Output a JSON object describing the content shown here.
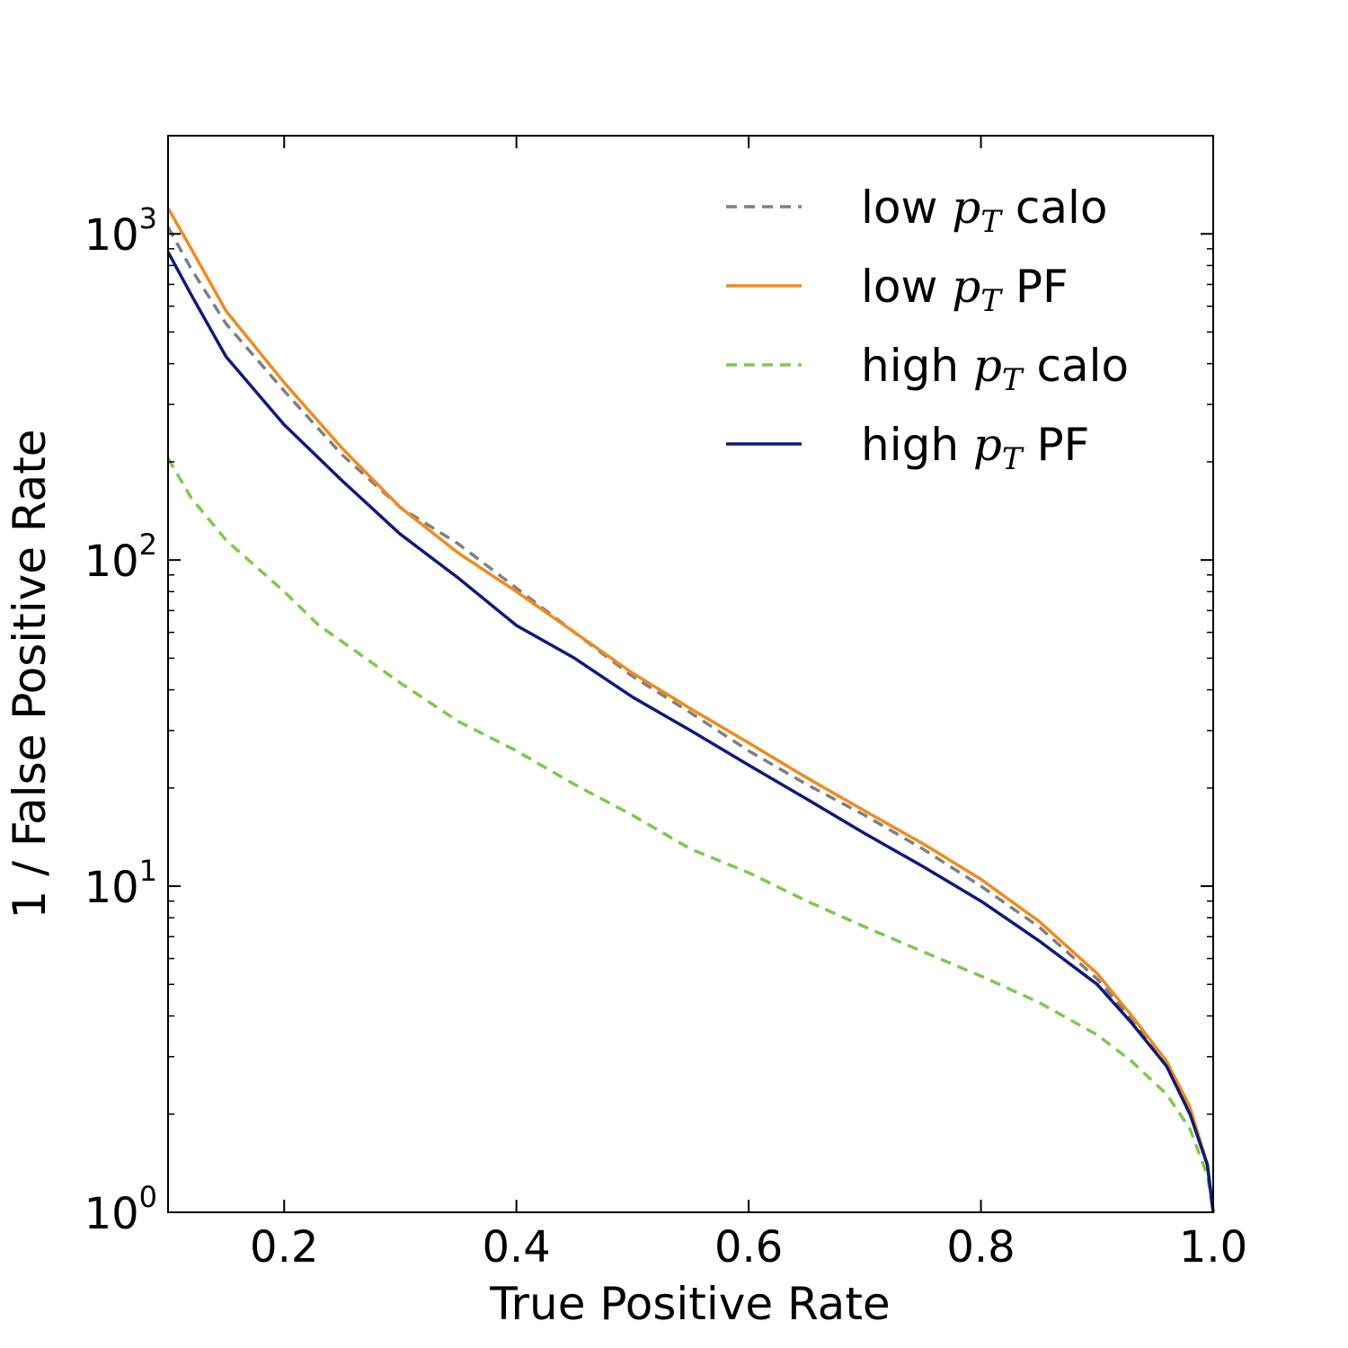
{
  "chart_data": {
    "type": "line",
    "title": "",
    "xlabel": "True Positive Rate",
    "ylabel": "1 / False Positive Rate",
    "xlim": [
      0.1,
      1.0
    ],
    "ylim": [
      1,
      2000
    ],
    "yscale": "log",
    "grid": false,
    "legend_position": "top-right",
    "x_ticks": [
      {
        "value": 0.2,
        "label": "0.2"
      },
      {
        "value": 0.4,
        "label": "0.4"
      },
      {
        "value": 0.6,
        "label": "0.6"
      },
      {
        "value": 0.8,
        "label": "0.8"
      },
      {
        "value": 1.0,
        "label": "1.0"
      }
    ],
    "y_ticks": [
      {
        "value": 1,
        "base": "10",
        "exp": "0"
      },
      {
        "value": 10,
        "base": "10",
        "exp": "1"
      },
      {
        "value": 100,
        "base": "10",
        "exp": "2"
      },
      {
        "value": 1000,
        "base": "10",
        "exp": "3"
      }
    ],
    "series": [
      {
        "label_prefix": "low",
        "label_math": "p",
        "label_sub": "T",
        "label_suffix": "calo",
        "color": "#808080",
        "dash": true,
        "points": [
          [
            0.1,
            1050
          ],
          [
            0.12,
            780
          ],
          [
            0.15,
            530
          ],
          [
            0.2,
            330
          ],
          [
            0.25,
            210
          ],
          [
            0.3,
            145
          ],
          [
            0.35,
            112
          ],
          [
            0.4,
            82
          ],
          [
            0.45,
            60
          ],
          [
            0.5,
            44
          ],
          [
            0.55,
            34
          ],
          [
            0.6,
            26
          ],
          [
            0.65,
            20.5
          ],
          [
            0.7,
            16.5
          ],
          [
            0.75,
            13
          ],
          [
            0.8,
            10
          ],
          [
            0.85,
            7.5
          ],
          [
            0.9,
            5.2
          ],
          [
            0.93,
            3.9
          ],
          [
            0.96,
            2.8
          ],
          [
            0.98,
            2.0
          ],
          [
            0.995,
            1.4
          ],
          [
            1.0,
            1.0
          ]
        ]
      },
      {
        "label_prefix": "low",
        "label_math": "p",
        "label_sub": "T",
        "label_suffix": "PF",
        "color": "#ee8c1e",
        "dash": false,
        "points": [
          [
            0.1,
            1200
          ],
          [
            0.12,
            900
          ],
          [
            0.15,
            580
          ],
          [
            0.2,
            350
          ],
          [
            0.25,
            220
          ],
          [
            0.3,
            145
          ],
          [
            0.35,
            105
          ],
          [
            0.4,
            80
          ],
          [
            0.45,
            60
          ],
          [
            0.5,
            45
          ],
          [
            0.55,
            35
          ],
          [
            0.6,
            27.5
          ],
          [
            0.65,
            21.5
          ],
          [
            0.7,
            17
          ],
          [
            0.75,
            13.5
          ],
          [
            0.8,
            10.5
          ],
          [
            0.85,
            7.8
          ],
          [
            0.9,
            5.4
          ],
          [
            0.93,
            4.0
          ],
          [
            0.96,
            2.9
          ],
          [
            0.98,
            2.1
          ],
          [
            0.995,
            1.4
          ],
          [
            1.0,
            1.0
          ]
        ]
      },
      {
        "label_prefix": "high",
        "label_math": "p",
        "label_sub": "T",
        "label_suffix": "calo",
        "color": "#7ccb4a",
        "dash": true,
        "points": [
          [
            0.1,
            205
          ],
          [
            0.12,
            155
          ],
          [
            0.15,
            115
          ],
          [
            0.2,
            80
          ],
          [
            0.23,
            63
          ],
          [
            0.26,
            53
          ],
          [
            0.3,
            42
          ],
          [
            0.35,
            32
          ],
          [
            0.4,
            26
          ],
          [
            0.45,
            20.5
          ],
          [
            0.5,
            16.5
          ],
          [
            0.55,
            13
          ],
          [
            0.6,
            11
          ],
          [
            0.65,
            9
          ],
          [
            0.7,
            7.5
          ],
          [
            0.75,
            6.3
          ],
          [
            0.8,
            5.3
          ],
          [
            0.85,
            4.4
          ],
          [
            0.9,
            3.5
          ],
          [
            0.93,
            2.9
          ],
          [
            0.96,
            2.3
          ],
          [
            0.98,
            1.8
          ],
          [
            0.995,
            1.3
          ],
          [
            1.0,
            1.0
          ]
        ]
      },
      {
        "label_prefix": "high",
        "label_math": "p",
        "label_sub": "T",
        "label_suffix": "PF",
        "color": "#0d1a7e",
        "dash": false,
        "points": [
          [
            0.1,
            880
          ],
          [
            0.12,
            650
          ],
          [
            0.15,
            420
          ],
          [
            0.2,
            260
          ],
          [
            0.25,
            175
          ],
          [
            0.3,
            120
          ],
          [
            0.35,
            88
          ],
          [
            0.4,
            63
          ],
          [
            0.45,
            50
          ],
          [
            0.5,
            38
          ],
          [
            0.55,
            30
          ],
          [
            0.6,
            23.5
          ],
          [
            0.65,
            18.5
          ],
          [
            0.7,
            14.5
          ],
          [
            0.75,
            11.5
          ],
          [
            0.8,
            9.0
          ],
          [
            0.85,
            6.8
          ],
          [
            0.9,
            5.0
          ],
          [
            0.93,
            3.8
          ],
          [
            0.96,
            2.8
          ],
          [
            0.98,
            2.0
          ],
          [
            0.995,
            1.4
          ],
          [
            1.0,
            1.0
          ]
        ]
      }
    ]
  }
}
